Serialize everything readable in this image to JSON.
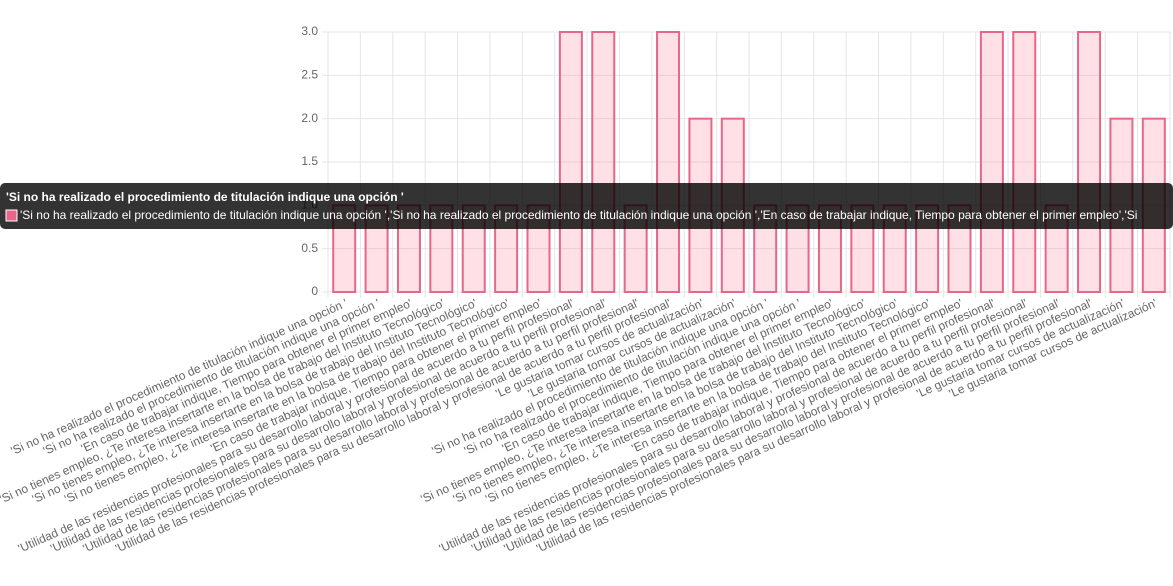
{
  "chart_data": {
    "type": "bar",
    "categories": [
      "'Si no ha realizado el procedimiento de titulación indique una opción '",
      "'Si no ha realizado el procedimiento de titulación indique una opción '",
      "'En caso de trabajar indique, Tiempo para obtener el primer empleo'",
      "'Si no tienes empleo, ¿Te interesa insertarte en la bolsa de trabajo del Instituto Tecnológico'",
      "'Si no tienes empleo, ¿Te interesa insertarte en la bolsa de trabajo del Instituto Tecnológico'",
      "'Si no tienes empleo, ¿Te interesa insertarte en la bolsa de trabajo del Instituto Tecnológico'",
      "'En caso de trabajar indique, Tiempo para obtener el primer empleo'",
      "'Utilidad de las residencias profesionales para su desarrollo laboral y profesional de acuerdo a tu perfil profesional'",
      "'Utilidad de las residencias profesionales para su desarrollo laboral y profesional de acuerdo a tu perfil profesional'",
      "'Utilidad de las residencias profesionales para su desarrollo laboral y profesional de acuerdo a tu perfil profesional'",
      "'Utilidad de las residencias profesionales para su desarrollo laboral y profesional de acuerdo a tu perfil profesional'",
      "'Le gustaria tomar cursos de actualización'",
      "'Le gustaria tomar cursos de actualización'",
      "'Si no ha realizado el procedimiento de titulación indique una opción '",
      "'Si no ha realizado el procedimiento de titulación indique una opción '",
      "'En caso de trabajar indique, Tiempo para obtener el primer empleo'",
      "'Si no tienes empleo, ¿Te interesa insertarte en la bolsa de trabajo del Instituto Tecnológico'",
      "'Si no tienes empleo, ¿Te interesa insertarte en la bolsa de trabajo del Instituto Tecnológico'",
      "'Si no tienes empleo, ¿Te interesa insertarte en la bolsa de trabajo del Instituto Tecnológico'",
      "'En caso de trabajar indique, Tiempo para obtener el primer empleo'",
      "'Utilidad de las residencias profesionales para su desarrollo laboral y profesional de acuerdo a tu perfil profesional'",
      "'Utilidad de las residencias profesionales para su desarrollo laboral y profesional de acuerdo a tu perfil profesional'",
      "'Utilidad de las residencias profesionales para su desarrollo laboral y profesional de acuerdo a tu perfil profesional'",
      "'Utilidad de las residencias profesionales para su desarrollo laboral y profesional de acuerdo a tu perfil profesional'",
      "'Le gustaria tomar cursos de actualización'",
      "'Le gustaria tomar cursos de actualización'"
    ],
    "values": [
      1,
      1,
      1,
      1,
      1,
      1,
      1,
      3,
      3,
      1,
      3,
      2,
      2,
      1,
      1,
      1,
      1,
      1,
      1,
      1,
      3,
      3,
      1,
      3,
      2,
      2
    ],
    "color": "rgba(255,99,132,0.2)",
    "border_color": "#e8668a",
    "ylim": [
      0,
      3
    ],
    "yticks": [
      0,
      0.5,
      {
        "value": 1,
        "label": "1.0"
      },
      1.5,
      {
        "value": 2,
        "label": "2.0"
      },
      2.5,
      {
        "value": 3,
        "label": "3.0"
      }
    ],
    "grid": true,
    "tooltip": {
      "title": "'Si no ha realizado el procedimiento de titulación indique una opción '",
      "body": "'Si no ha realizado el procedimiento de titulación indique una opción ','Si no ha realizado el procedimiento de titulación indique una opción ','En caso de trabajar indique, Tiempo para obtener el primer empleo','Si"
    }
  }
}
